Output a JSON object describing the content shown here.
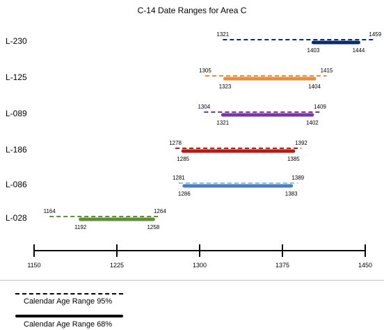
{
  "chart_data": {
    "type": "range",
    "title": "C-14 Date Ranges for Area C",
    "axis": {
      "xlim": [
        1150,
        1450
      ],
      "major_ticks": [
        1150,
        1225,
        1300,
        1375,
        1450
      ],
      "tick_labels": [
        "1150",
        "1225",
        "1300",
        "1375",
        "1450"
      ]
    },
    "series": [
      {
        "name": "L-230",
        "color": "#0b2a6e",
        "range95": [
          1321,
          1459
        ],
        "range68": [
          1403,
          1444
        ],
        "labels95": [
          "1321",
          "1459"
        ],
        "labels68": [
          "1403",
          "1444"
        ]
      },
      {
        "name": "L-125",
        "color": "#ef8c3a",
        "range95": [
          1305,
          1415
        ],
        "range68": [
          1323,
          1404
        ],
        "labels95": [
          "1305",
          "1415"
        ],
        "labels68": [
          "1323",
          "1404"
        ]
      },
      {
        "name": "L-089",
        "color": "#7a35a8",
        "range95": [
          1304,
          1409
        ],
        "range68": [
          1321,
          1402
        ],
        "labels95": [
          "1304",
          "1409"
        ],
        "labels68": [
          "1321",
          "1402"
        ]
      },
      {
        "name": "L-186",
        "color": "#c0160c",
        "range95": [
          1278,
          1392
        ],
        "range68": [
          1285,
          1385
        ],
        "labels95": [
          "1278",
          "1392"
        ],
        "labels68": [
          "1285",
          "1385"
        ]
      },
      {
        "name": "L-086",
        "color": "#4a7fc8",
        "dash_color": "#8cc4e8",
        "range95": [
          1281,
          1389
        ],
        "range68": [
          1286,
          1383
        ],
        "labels95": [
          "1281",
          "1389"
        ],
        "labels68": [
          "1286",
          "1383"
        ]
      },
      {
        "name": "L-028",
        "color": "#5f9133",
        "range95": [
          1164,
          1264
        ],
        "range68": [
          1192,
          1258
        ],
        "labels95": [
          "1164",
          "1264"
        ],
        "labels68": [
          "1192",
          "1258"
        ]
      }
    ],
    "legend": [
      {
        "label": "Calendar Age Range 95%",
        "style": "dashed"
      },
      {
        "label": "Calendar Age Range 68%",
        "style": "solid"
      }
    ],
    "legend_position": "bottom-left"
  }
}
